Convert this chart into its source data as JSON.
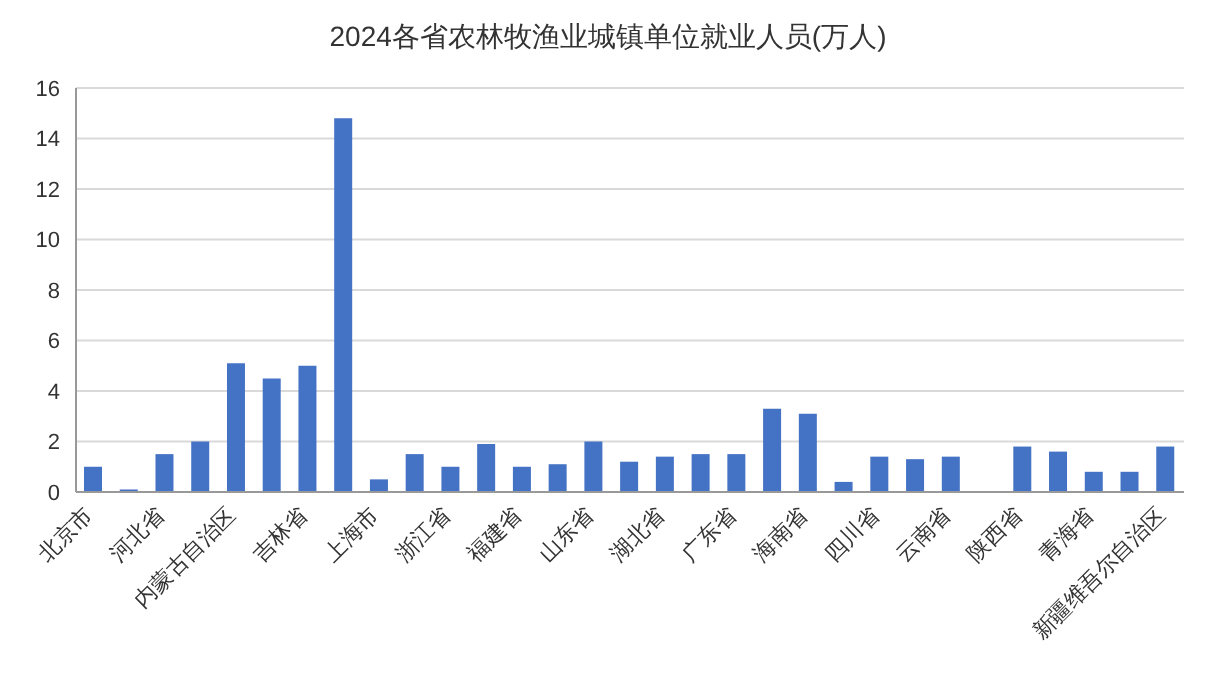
{
  "chart_data": {
    "type": "bar",
    "title": "2024各省农林牧渔业城镇单位就业人员(万人)",
    "categories": [
      "北京市",
      null,
      "河北省",
      null,
      "内蒙古自治区",
      null,
      "吉林省",
      null,
      "上海市",
      null,
      "浙江省",
      null,
      "福建省",
      null,
      "山东省",
      null,
      "湖北省",
      null,
      "广东省",
      null,
      "海南省",
      null,
      "四川省",
      null,
      "云南省",
      null,
      "陕西省",
      null,
      "青海省",
      null,
      "新疆维吾尔自治区"
    ],
    "values": [
      1.0,
      0.1,
      1.5,
      2.0,
      5.1,
      4.5,
      5.0,
      14.8,
      0.5,
      1.5,
      1.0,
      1.9,
      1.0,
      1.1,
      2.0,
      1.2,
      1.4,
      1.5,
      1.5,
      3.3,
      3.1,
      0.4,
      1.4,
      1.3,
      1.4,
      null,
      1.8,
      1.6,
      0.8,
      0.8,
      1.8
    ],
    "color": "#4472c4",
    "ylim": [
      0,
      16
    ],
    "yticks": [
      0,
      2,
      4,
      6,
      8,
      10,
      12,
      14,
      16
    ],
    "grid": "y",
    "legend": false
  }
}
